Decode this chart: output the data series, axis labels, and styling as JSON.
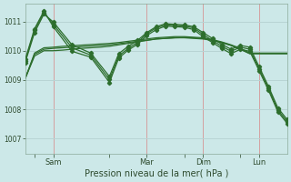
{
  "background_color": "#cce8e8",
  "grid_color_v": "#d4a0a0",
  "grid_color_h": "#b8d4d4",
  "line_color": "#2d6e2d",
  "xlabel": "Pression niveau de la mer( hPa )",
  "ylim": [
    1006.5,
    1011.6
  ],
  "yticks": [
    1007,
    1008,
    1009,
    1010,
    1011
  ],
  "xlim": [
    0,
    168
  ],
  "xtick_labels": [
    "",
    "Sam",
    "",
    "Mar",
    "",
    "Dim",
    "",
    "Lun"
  ],
  "xtick_positions": [
    6,
    18,
    54,
    78,
    102,
    114,
    138,
    150
  ],
  "vlines": [
    18,
    78,
    114,
    150
  ],
  "num_points": 169,
  "series": {
    "smooth": [
      {
        "x": [
          0,
          6,
          12,
          18,
          24,
          30,
          36,
          42,
          48,
          54,
          60,
          66,
          72,
          78,
          84,
          90,
          96,
          102,
          108,
          114,
          120,
          126,
          132,
          138,
          144,
          150,
          156,
          162,
          168
        ],
        "y": [
          1009.05,
          1009.82,
          1010.0,
          1010.0,
          1010.02,
          1010.05,
          1010.08,
          1010.1,
          1010.12,
          1010.15,
          1010.2,
          1010.25,
          1010.3,
          1010.35,
          1010.4,
          1010.42,
          1010.44,
          1010.44,
          1010.42,
          1010.4,
          1010.35,
          1010.28,
          1010.18,
          1010.05,
          1009.9,
          1009.9,
          1009.9,
          1009.9,
          1009.9
        ]
      },
      {
        "x": [
          0,
          6,
          12,
          18,
          24,
          30,
          36,
          42,
          48,
          54,
          60,
          66,
          72,
          78,
          84,
          90,
          96,
          102,
          108,
          114,
          120,
          126,
          132,
          138,
          144,
          150,
          156,
          162,
          168
        ],
        "y": [
          1009.05,
          1009.88,
          1010.05,
          1010.08,
          1010.1,
          1010.12,
          1010.14,
          1010.16,
          1010.18,
          1010.2,
          1010.24,
          1010.28,
          1010.32,
          1010.36,
          1010.4,
          1010.42,
          1010.44,
          1010.45,
          1010.44,
          1010.42,
          1010.36,
          1010.28,
          1010.18,
          1010.05,
          1009.9,
          1009.9,
          1009.9,
          1009.9,
          1009.9
        ]
      },
      {
        "x": [
          0,
          6,
          12,
          18,
          24,
          30,
          36,
          42,
          48,
          54,
          60,
          66,
          72,
          78,
          84,
          90,
          96,
          102,
          108,
          114,
          120,
          126,
          132,
          138,
          144,
          150,
          156,
          162,
          168
        ],
        "y": [
          1009.05,
          1009.92,
          1010.1,
          1010.12,
          1010.15,
          1010.17,
          1010.19,
          1010.21,
          1010.23,
          1010.25,
          1010.28,
          1010.32,
          1010.36,
          1010.4,
          1010.44,
          1010.46,
          1010.48,
          1010.48,
          1010.46,
          1010.44,
          1010.38,
          1010.3,
          1010.2,
          1010.08,
          1009.92,
          1009.92,
          1009.92,
          1009.92,
          1009.92
        ]
      }
    ],
    "marked": [
      {
        "x": [
          0,
          6,
          12,
          18,
          30,
          42,
          54,
          60,
          66,
          72,
          78,
          84,
          90,
          96,
          102,
          108,
          114,
          120,
          126,
          132,
          138,
          144,
          150,
          156,
          162,
          168
        ],
        "y": [
          1009.6,
          1010.62,
          1011.25,
          1010.98,
          1010.2,
          1009.92,
          1009.12,
          1009.9,
          1010.15,
          1010.35,
          1010.62,
          1010.82,
          1010.92,
          1010.9,
          1010.88,
          1010.82,
          1010.62,
          1010.42,
          1010.22,
          1010.05,
          1010.18,
          1010.12,
          1009.45,
          1008.78,
          1008.05,
          1007.65
        ]
      },
      {
        "x": [
          0,
          6,
          12,
          18,
          30,
          42,
          54,
          60,
          66,
          72,
          78,
          84,
          90,
          96,
          102,
          108,
          114,
          120,
          126,
          132,
          138,
          144,
          150,
          156,
          162,
          168
        ],
        "y": [
          1009.65,
          1010.7,
          1011.3,
          1010.9,
          1010.1,
          1009.85,
          1009.02,
          1009.82,
          1010.08,
          1010.28,
          1010.58,
          1010.78,
          1010.88,
          1010.86,
          1010.84,
          1010.78,
          1010.55,
          1010.35,
          1010.15,
          1009.98,
          1010.12,
          1010.05,
          1009.38,
          1008.72,
          1007.98,
          1007.58
        ]
      },
      {
        "x": [
          0,
          6,
          12,
          18,
          30,
          42,
          54,
          60,
          66,
          72,
          78,
          84,
          90,
          96,
          102,
          108,
          114,
          120,
          126,
          132,
          138,
          144,
          150,
          156,
          162,
          168
        ],
        "y": [
          1009.7,
          1010.75,
          1011.35,
          1010.82,
          1009.98,
          1009.78,
          1008.92,
          1009.75,
          1010.02,
          1010.22,
          1010.52,
          1010.72,
          1010.84,
          1010.82,
          1010.8,
          1010.72,
          1010.48,
          1010.28,
          1010.08,
          1009.9,
          1010.05,
          1009.98,
          1009.32,
          1008.65,
          1007.92,
          1007.52
        ]
      }
    ]
  }
}
